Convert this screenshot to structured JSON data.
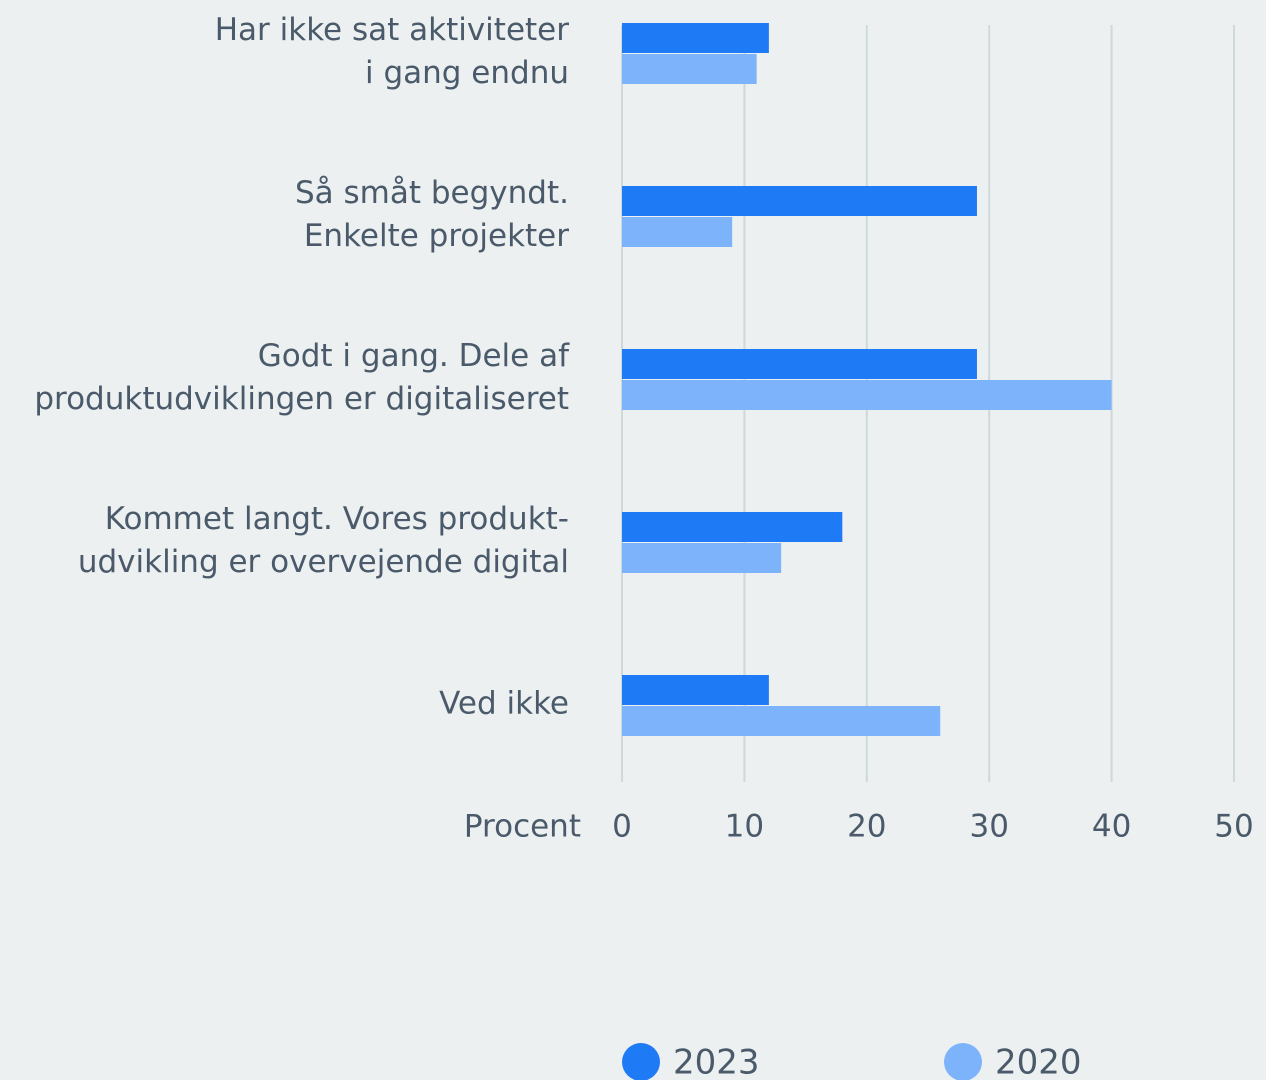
{
  "chart_data": {
    "type": "bar",
    "orientation": "horizontal",
    "categories": [
      [
        "Har ikke sat aktiviteter",
        "i gang endnu"
      ],
      [
        "Så småt begyndt.",
        "Enkelte projekter"
      ],
      [
        "Godt i gang. Dele af",
        "produktudviklingen er digitaliseret"
      ],
      [
        "Kommet langt. Vores produkt-",
        "udvikling er overvejende digital"
      ],
      [
        "Ved ikke"
      ]
    ],
    "series": [
      {
        "name": "2023",
        "color": "#1f7af5",
        "values": [
          12,
          29,
          29,
          18,
          12
        ]
      },
      {
        "name": "2020",
        "color": "#7db3fb",
        "values": [
          11,
          9,
          40,
          13,
          26
        ]
      }
    ],
    "x_label": "Procent",
    "xlim": [
      0,
      50
    ],
    "xticks": [
      0,
      10,
      20,
      30,
      40,
      50
    ],
    "grid": true,
    "legend": "bottom"
  }
}
